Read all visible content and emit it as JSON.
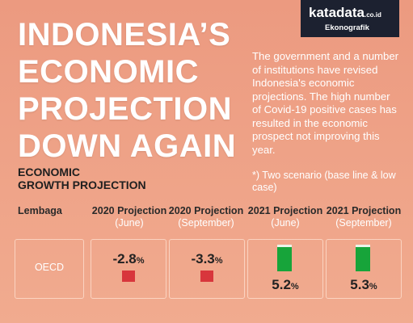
{
  "header": {
    "logo": "katadata",
    "logo_domain": ".co.id",
    "brand": "Ekonografik",
    "title_lines": [
      "INDONESIA’S",
      "ECONOMIC",
      "PROJECTION",
      "DOWN AGAIN"
    ],
    "description": "The government and a number of institutions have revised Indonesia's economic projections. The high number of Covid-19 positive cases has resulted in the economic prospect not improving this year."
  },
  "section": {
    "title_lines": [
      "ECONOMIC",
      "GROWTH PROJECTION"
    ],
    "note": "*) Two scenario (base line & low case)"
  },
  "table": {
    "columns": [
      {
        "title": "Lembaga",
        "sub": null
      },
      {
        "title": "2020 Projection",
        "sub": "(June)"
      },
      {
        "title": "2020 Projection",
        "sub": "(September)"
      },
      {
        "title": "2021 Projection",
        "sub": "(June)"
      },
      {
        "title": "2021 Projection",
        "sub": "(September)"
      }
    ],
    "rows": [
      {
        "name": "OECD",
        "cells": [
          {
            "value": "-2.8",
            "unit": "%"
          },
          {
            "value": "-3.3",
            "unit": "%"
          },
          {
            "value": "5.2",
            "unit": "%"
          },
          {
            "value": "5.3",
            "unit": "%"
          }
        ]
      }
    ]
  }
}
